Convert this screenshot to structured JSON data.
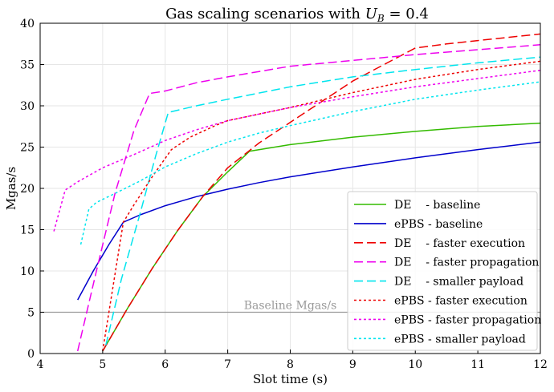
{
  "chart_data": {
    "type": "line",
    "title": "Gas scaling scenarios with U_B = 0.4",
    "title_parts": {
      "prefix": "Gas scaling scenarios with ",
      "var": "U",
      "sub": "B",
      "suffix": " = 0.4"
    },
    "xlabel": "Slot time (s)",
    "ylabel": "Mgas/s",
    "xlim": [
      4,
      12
    ],
    "ylim": [
      0,
      40
    ],
    "xticks": [
      4,
      5,
      6,
      7,
      8,
      9,
      10,
      11,
      12
    ],
    "yticks": [
      0,
      5,
      10,
      15,
      20,
      25,
      30,
      35,
      40
    ],
    "grid": true,
    "legend_position": "lower-right",
    "reference_line": {
      "y": 5,
      "label": "Baseline Mgas/s",
      "color": "#999999"
    },
    "series": [
      {
        "name": "DE    - baseline",
        "color": "#33bb00",
        "dash": "solid",
        "x": [
          5.0,
          5.4,
          5.8,
          6.2,
          6.6,
          7.0,
          7.35,
          8.0,
          9.0,
          10.0,
          11.0,
          12.0
        ],
        "y": [
          0.3,
          5.5,
          10.4,
          14.9,
          19.0,
          22.0,
          24.5,
          25.3,
          26.2,
          26.9,
          27.5,
          27.9
        ]
      },
      {
        "name": "ePBS - baseline",
        "color": "#0000cc",
        "dash": "solid",
        "x": [
          4.6,
          4.85,
          5.1,
          5.33,
          5.6,
          6.0,
          6.5,
          7.0,
          7.5,
          8.0,
          9.0,
          10.0,
          11.0,
          12.0
        ],
        "y": [
          6.5,
          10.0,
          13.2,
          15.9,
          16.8,
          17.9,
          19.0,
          19.9,
          20.7,
          21.4,
          22.6,
          23.7,
          24.7,
          25.6
        ]
      },
      {
        "name": "DE    - faster execution",
        "color": "#ee0000",
        "dash": "dashed",
        "x": [
          5.0,
          5.4,
          5.8,
          6.2,
          6.6,
          7.0,
          7.5,
          8.0,
          8.5,
          9.0,
          9.5,
          10.0,
          10.5,
          11.0,
          11.5,
          12.0
        ],
        "y": [
          0.3,
          5.5,
          10.4,
          14.9,
          19.0,
          22.5,
          25.5,
          28.0,
          30.5,
          33.0,
          35.0,
          37.0,
          37.5,
          37.9,
          38.3,
          38.7
        ]
      },
      {
        "name": "DE    - faster propagation",
        "color": "#ee00ee",
        "dash": "dashed",
        "x": [
          4.6,
          4.9,
          5.2,
          5.5,
          5.75,
          6.0,
          6.5,
          7.0,
          8.0,
          9.0,
          10.0,
          11.0,
          12.0
        ],
        "y": [
          0.3,
          10.0,
          19.5,
          27.0,
          31.5,
          31.8,
          32.8,
          33.5,
          34.8,
          35.5,
          36.2,
          36.8,
          37.4
        ]
      },
      {
        "name": "DE    - smaller payload",
        "color": "#00e5ee",
        "dash": "dashed",
        "x": [
          5.05,
          5.3,
          5.6,
          5.85,
          6.05,
          6.5,
          7.0,
          8.0,
          9.0,
          10.0,
          11.0,
          12.0
        ],
        "y": [
          1.0,
          9.0,
          17.0,
          24.0,
          29.2,
          30.0,
          30.8,
          32.3,
          33.5,
          34.4,
          35.2,
          35.9
        ]
      },
      {
        "name": "ePBS - faster execution",
        "color": "#ee0000",
        "dash": "dotted",
        "x": [
          5.0,
          5.33,
          5.5,
          5.8,
          6.1,
          6.4,
          6.8,
          7.0,
          7.5,
          8.0,
          9.0,
          10.0,
          11.0,
          12.0
        ],
        "y": [
          0.3,
          15.9,
          18.0,
          21.5,
          24.7,
          26.2,
          27.6,
          28.2,
          29.0,
          29.8,
          31.6,
          33.2,
          34.4,
          35.4
        ]
      },
      {
        "name": "ePBS - faster propagation",
        "color": "#ee00ee",
        "dash": "dotted",
        "x": [
          4.22,
          4.4,
          4.6,
          5.0,
          5.5,
          6.0,
          6.5,
          7.0,
          7.5,
          8.0,
          9.0,
          10.0,
          11.0,
          12.0
        ],
        "y": [
          14.8,
          19.8,
          20.8,
          22.5,
          24.1,
          25.8,
          27.1,
          28.2,
          29.0,
          29.8,
          31.1,
          32.3,
          33.3,
          34.3
        ]
      },
      {
        "name": "ePBS - smaller payload",
        "color": "#00e5ee",
        "dash": "dotted",
        "x": [
          4.65,
          4.78,
          4.9,
          5.2,
          5.6,
          6.0,
          6.5,
          7.0,
          7.5,
          8.0,
          9.0,
          10.0,
          11.0,
          12.0
        ],
        "y": [
          13.2,
          17.5,
          18.3,
          19.4,
          20.9,
          22.6,
          24.2,
          25.6,
          26.7,
          27.6,
          29.3,
          30.8,
          31.9,
          32.9
        ]
      }
    ]
  }
}
